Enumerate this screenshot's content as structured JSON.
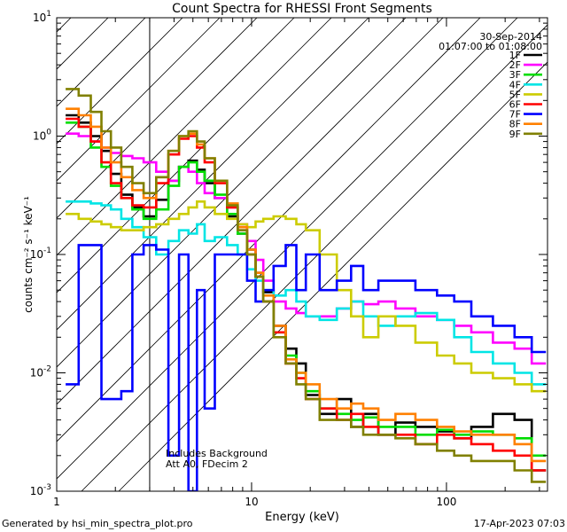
{
  "chart_data": {
    "type": "line",
    "title": "Count Spectra for RHESSI Front Segments",
    "xlabel": "Energy (keV)",
    "ylabel": "counts cm⁻² s⁻¹ keV⁻¹",
    "xscale": "log",
    "yscale": "log",
    "xlim": [
      1,
      330
    ],
    "ylim": [
      0.001,
      10
    ],
    "x_major_ticks": [
      {
        "value": 1,
        "label": "1"
      },
      {
        "value": 10,
        "label": "10"
      },
      {
        "value": 100,
        "label": "100"
      }
    ],
    "y_major_ticks": [
      {
        "value": 10,
        "base": "10",
        "exp": "1"
      },
      {
        "value": 1,
        "base": "10",
        "exp": "0"
      },
      {
        "value": 0.1,
        "base": "10",
        "exp": "-1"
      },
      {
        "value": 0.01,
        "base": "10",
        "exp": "-2"
      },
      {
        "value": 0.001,
        "base": "10",
        "exp": "-3"
      }
    ],
    "legend": {
      "placement": "top-right",
      "date": "30-Sep-2014",
      "time_range": "01:07:00 to 01:08:00"
    },
    "shaded_region": {
      "x_from": 1,
      "x_to": 3,
      "style": "diagonal hatch"
    },
    "annotation": [
      "Includes Background",
      "Att A0, FDecim 2"
    ],
    "series": [
      {
        "name": "1F",
        "color": "#000000",
        "x": [
          1.2,
          1.4,
          1.6,
          1.8,
          2.0,
          2.3,
          2.6,
          3.0,
          3.5,
          4.0,
          4.5,
          5.0,
          5.5,
          6.0,
          7.0,
          8.0,
          9.0,
          10,
          11,
          12,
          14,
          16,
          18,
          20,
          25,
          30,
          35,
          40,
          50,
          60,
          80,
          100,
          120,
          150,
          200,
          250,
          300
        ],
        "y": [
          1.5,
          1.3,
          1.0,
          0.75,
          0.48,
          0.32,
          0.25,
          0.21,
          0.29,
          0.42,
          0.55,
          0.62,
          0.52,
          0.4,
          0.3,
          0.21,
          0.15,
          0.11,
          0.07,
          0.048,
          0.025,
          0.016,
          0.012,
          0.0065,
          0.0045,
          0.006,
          0.0035,
          0.0045,
          0.003,
          0.0038,
          0.0035,
          0.0032,
          0.0028,
          0.0035,
          0.0045,
          0.004,
          0.0015
        ]
      },
      {
        "name": "2F",
        "color": "#ff00ff",
        "x": [
          1.2,
          1.4,
          1.6,
          1.8,
          2.0,
          2.3,
          2.6,
          3.0,
          3.5,
          4.0,
          4.5,
          5.0,
          5.5,
          6.0,
          7.0,
          8.0,
          9.0,
          10,
          11,
          12,
          14,
          16,
          18,
          20,
          25,
          30,
          35,
          40,
          50,
          60,
          80,
          100,
          120,
          150,
          200,
          250,
          300
        ],
        "y": [
          1.05,
          1.0,
          0.9,
          0.8,
          0.72,
          0.68,
          0.65,
          0.6,
          0.5,
          0.42,
          0.55,
          0.5,
          0.4,
          0.33,
          0.3,
          0.25,
          0.18,
          0.13,
          0.09,
          0.06,
          0.04,
          0.035,
          0.032,
          0.03,
          0.03,
          0.035,
          0.04,
          0.038,
          0.04,
          0.035,
          0.03,
          0.028,
          0.025,
          0.022,
          0.018,
          0.016,
          0.012
        ]
      },
      {
        "name": "3F",
        "color": "#00dd00",
        "x": [
          1.2,
          1.4,
          1.6,
          1.8,
          2.0,
          2.3,
          2.6,
          3.0,
          3.5,
          4.0,
          4.5,
          5.0,
          5.5,
          6.0,
          7.0,
          8.0,
          9.0,
          10,
          11,
          12,
          14,
          16,
          18,
          20,
          25,
          30,
          35,
          40,
          50,
          60,
          80,
          100,
          120,
          150,
          200,
          250,
          300
        ],
        "y": [
          1.3,
          1.2,
          0.8,
          0.55,
          0.38,
          0.3,
          0.24,
          0.2,
          0.24,
          0.38,
          0.55,
          0.6,
          0.5,
          0.42,
          0.32,
          0.22,
          0.15,
          0.1,
          0.065,
          0.04,
          0.022,
          0.014,
          0.01,
          0.007,
          0.005,
          0.0045,
          0.004,
          0.0042,
          0.0035,
          0.0035,
          0.003,
          0.0033,
          0.003,
          0.0032,
          0.003,
          0.0028,
          0.002
        ]
      },
      {
        "name": "4F",
        "color": "#00e5e5",
        "x": [
          1.2,
          1.4,
          1.6,
          1.8,
          2.0,
          2.3,
          2.6,
          3.0,
          3.5,
          4.0,
          4.5,
          5.0,
          5.5,
          6.0,
          7.0,
          8.0,
          9.0,
          10,
          11,
          12,
          14,
          16,
          18,
          20,
          25,
          30,
          35,
          40,
          50,
          60,
          80,
          100,
          120,
          150,
          200,
          250,
          300
        ],
        "y": [
          0.28,
          0.28,
          0.27,
          0.26,
          0.24,
          0.2,
          0.17,
          0.14,
          0.1,
          0.13,
          0.16,
          0.15,
          0.18,
          0.13,
          0.14,
          0.12,
          0.1,
          0.075,
          0.06,
          0.05,
          0.045,
          0.05,
          0.04,
          0.03,
          0.028,
          0.035,
          0.04,
          0.03,
          0.025,
          0.03,
          0.032,
          0.028,
          0.02,
          0.015,
          0.012,
          0.01,
          0.008
        ]
      },
      {
        "name": "5F",
        "color": "#cccc00",
        "x": [
          1.2,
          1.4,
          1.6,
          1.8,
          2.0,
          2.3,
          2.6,
          3.0,
          3.5,
          4.0,
          4.5,
          5.0,
          5.5,
          6.0,
          7.0,
          8.0,
          9.0,
          10,
          11,
          12,
          14,
          16,
          18,
          20,
          25,
          30,
          35,
          40,
          50,
          60,
          80,
          100,
          120,
          150,
          200,
          250,
          300
        ],
        "y": [
          0.22,
          0.2,
          0.19,
          0.18,
          0.17,
          0.16,
          0.16,
          0.17,
          0.18,
          0.2,
          0.22,
          0.25,
          0.28,
          0.25,
          0.22,
          0.2,
          0.18,
          0.17,
          0.19,
          0.2,
          0.21,
          0.2,
          0.18,
          0.16,
          0.1,
          0.05,
          0.03,
          0.02,
          0.03,
          0.025,
          0.018,
          0.014,
          0.012,
          0.01,
          0.009,
          0.008,
          0.007
        ]
      },
      {
        "name": "6F",
        "color": "#ff0000",
        "x": [
          1.2,
          1.4,
          1.6,
          1.8,
          2.0,
          2.3,
          2.6,
          3.0,
          3.5,
          4.0,
          4.5,
          5.0,
          5.5,
          6.0,
          7.0,
          8.0,
          9.0,
          10,
          11,
          12,
          14,
          16,
          18,
          20,
          25,
          30,
          35,
          40,
          50,
          60,
          80,
          100,
          120,
          150,
          200,
          250,
          300
        ],
        "y": [
          1.4,
          1.2,
          0.9,
          0.6,
          0.4,
          0.3,
          0.26,
          0.25,
          0.4,
          0.7,
          0.95,
          1.0,
          0.8,
          0.6,
          0.4,
          0.25,
          0.16,
          0.1,
          0.065,
          0.04,
          0.022,
          0.012,
          0.009,
          0.006,
          0.005,
          0.004,
          0.0045,
          0.0035,
          0.003,
          0.003,
          0.0025,
          0.003,
          0.0028,
          0.0025,
          0.0022,
          0.002,
          0.0015
        ]
      },
      {
        "name": "7F",
        "color": "#0000ff",
        "x": [
          1.2,
          1.4,
          1.6,
          1.8,
          2.0,
          2.3,
          2.6,
          3.0,
          3.5,
          4.0,
          4.5,
          5.0,
          5.5,
          6.0,
          7.0,
          8.0,
          9.0,
          10,
          11,
          12,
          14,
          16,
          18,
          20,
          25,
          30,
          35,
          40,
          50,
          60,
          80,
          100,
          120,
          150,
          200,
          250,
          300
        ],
        "y": [
          0.008,
          0.12,
          0.12,
          0.006,
          0.006,
          0.007,
          0.1,
          0.12,
          0.11,
          0.002,
          0.1,
          0.001,
          0.05,
          0.005,
          0.1,
          0.1,
          0.1,
          0.06,
          0.04,
          0.05,
          0.08,
          0.12,
          0.05,
          0.1,
          0.05,
          0.06,
          0.08,
          0.05,
          0.06,
          0.06,
          0.05,
          0.045,
          0.04,
          0.03,
          0.025,
          0.02,
          0.015
        ]
      },
      {
        "name": "8F",
        "color": "#ff8000",
        "x": [
          1.2,
          1.4,
          1.6,
          1.8,
          2.0,
          2.3,
          2.6,
          3.0,
          3.5,
          4.0,
          4.5,
          5.0,
          5.5,
          6.0,
          7.0,
          8.0,
          9.0,
          10,
          11,
          12,
          14,
          16,
          18,
          20,
          25,
          30,
          35,
          40,
          50,
          60,
          80,
          100,
          120,
          150,
          200,
          250,
          300
        ],
        "y": [
          1.7,
          1.5,
          1.2,
          0.8,
          0.6,
          0.45,
          0.35,
          0.3,
          0.45,
          0.75,
          1.0,
          1.05,
          0.85,
          0.65,
          0.42,
          0.27,
          0.17,
          0.11,
          0.07,
          0.045,
          0.025,
          0.013,
          0.01,
          0.008,
          0.006,
          0.005,
          0.0055,
          0.005,
          0.004,
          0.0045,
          0.004,
          0.0035,
          0.0032,
          0.003,
          0.003,
          0.0025,
          0.0018
        ]
      },
      {
        "name": "9F",
        "color": "#808000",
        "x": [
          1.2,
          1.4,
          1.6,
          1.8,
          2.0,
          2.3,
          2.6,
          3.0,
          3.5,
          4.0,
          4.5,
          5.0,
          5.5,
          6.0,
          7.0,
          8.0,
          9.0,
          10,
          11,
          12,
          14,
          16,
          18,
          20,
          25,
          30,
          35,
          40,
          50,
          60,
          80,
          100,
          120,
          150,
          200,
          250,
          300
        ],
        "y": [
          2.5,
          2.2,
          1.6,
          1.1,
          0.8,
          0.55,
          0.4,
          0.33,
          0.45,
          0.75,
          1.0,
          1.1,
          0.9,
          0.65,
          0.42,
          0.26,
          0.16,
          0.1,
          0.065,
          0.04,
          0.02,
          0.012,
          0.008,
          0.006,
          0.004,
          0.004,
          0.0035,
          0.003,
          0.003,
          0.0028,
          0.0025,
          0.0022,
          0.002,
          0.0018,
          0.0018,
          0.0015,
          0.0012
        ]
      }
    ]
  },
  "footer": {
    "generated_by": "Generated by hsi_min_spectra_plot.pro",
    "timestamp": "17-Apr-2023 07:03"
  }
}
